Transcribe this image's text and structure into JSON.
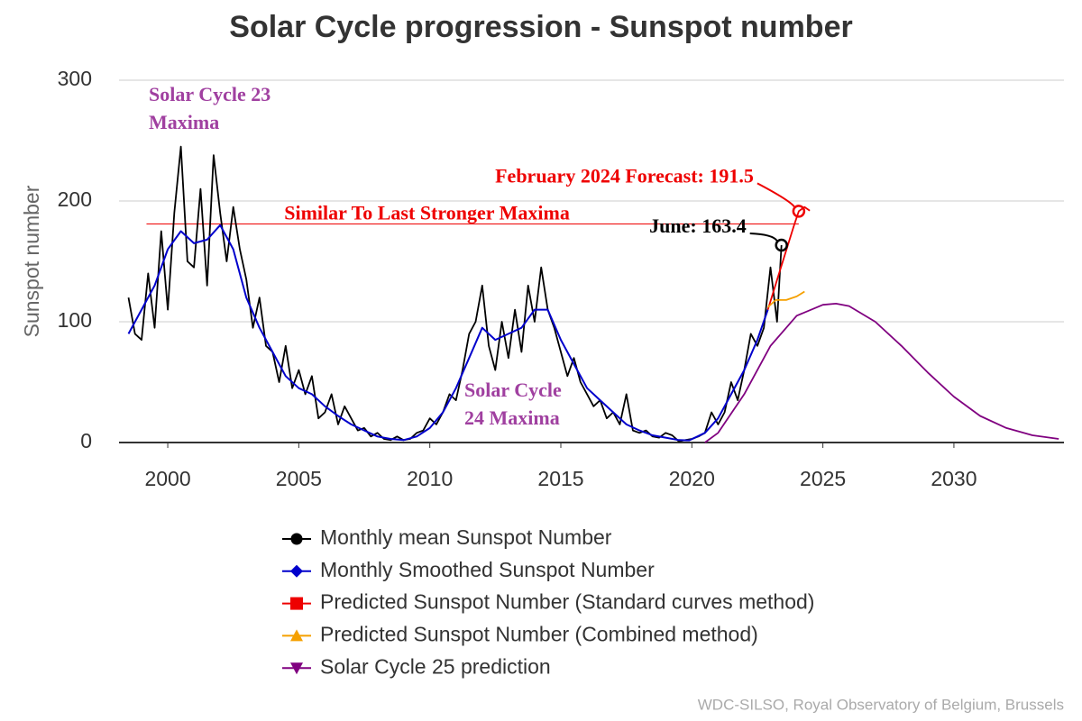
{
  "chart_data": {
    "type": "line",
    "title": "Solar Cycle progression - Sunspot number",
    "y_label": "Sunspot number",
    "source": "WDC-SILSO, Royal Observatory of Belgium, Brussels",
    "xlim": [
      1998.14,
      2034.2
    ],
    "xticks": [
      2000,
      2005,
      2010,
      2015,
      2020,
      2025,
      2030
    ],
    "ylim": [
      0,
      300
    ],
    "yticks": [
      0,
      100,
      200,
      300
    ],
    "grid": true,
    "legend": "bottom",
    "series": [
      {
        "name": "Monthly mean Sunspot Number",
        "color": "#000000",
        "marker": "circle",
        "x": [
          1998.5,
          1998.75,
          1999,
          1999.25,
          1999.5,
          1999.75,
          2000,
          2000.25,
          2000.5,
          2000.75,
          2001,
          2001.25,
          2001.5,
          2001.75,
          2002,
          2002.25,
          2002.5,
          2002.75,
          2003,
          2003.25,
          2003.5,
          2003.75,
          2004,
          2004.25,
          2004.5,
          2004.75,
          2005,
          2005.25,
          2005.5,
          2005.75,
          2006,
          2006.25,
          2006.5,
          2006.75,
          2007,
          2007.25,
          2007.5,
          2007.75,
          2008,
          2008.25,
          2008.5,
          2008.75,
          2009,
          2009.25,
          2009.5,
          2009.75,
          2010,
          2010.25,
          2010.5,
          2010.75,
          2011,
          2011.25,
          2011.5,
          2011.75,
          2012,
          2012.25,
          2012.5,
          2012.75,
          2013,
          2013.25,
          2013.5,
          2013.75,
          2014,
          2014.25,
          2014.5,
          2014.75,
          2015,
          2015.25,
          2015.5,
          2015.75,
          2016,
          2016.25,
          2016.5,
          2016.75,
          2017,
          2017.25,
          2017.5,
          2017.75,
          2018,
          2018.25,
          2018.5,
          2018.75,
          2019,
          2019.25,
          2019.5,
          2019.75,
          2020,
          2020.25,
          2020.5,
          2020.75,
          2021,
          2021.25,
          2021.5,
          2021.75,
          2022,
          2022.25,
          2022.5,
          2022.75,
          2023,
          2023.25,
          2023.42
        ],
        "values": [
          120,
          90,
          85,
          140,
          95,
          175,
          110,
          190,
          245,
          150,
          145,
          210,
          130,
          238,
          190,
          150,
          195,
          160,
          135,
          95,
          120,
          80,
          75,
          50,
          80,
          45,
          60,
          40,
          55,
          20,
          25,
          40,
          15,
          30,
          20,
          10,
          12,
          5,
          8,
          3,
          2,
          5,
          2,
          3,
          8,
          10,
          20,
          15,
          25,
          40,
          35,
          60,
          90,
          100,
          130,
          80,
          60,
          100,
          70,
          110,
          75,
          130,
          100,
          145,
          110,
          95,
          75,
          55,
          70,
          50,
          40,
          30,
          35,
          20,
          25,
          15,
          40,
          10,
          8,
          10,
          5,
          4,
          8,
          6,
          1,
          2,
          3,
          5,
          8,
          25,
          15,
          25,
          50,
          35,
          60,
          90,
          80,
          95,
          145,
          100,
          163.4
        ]
      },
      {
        "name": "Monthly Smoothed Sunspot Number",
        "color": "#0000cc",
        "marker": "diamond",
        "x": [
          1998.5,
          1999,
          1999.5,
          2000,
          2000.5,
          2001,
          2001.5,
          2002,
          2002.5,
          2003,
          2003.5,
          2004,
          2004.5,
          2005,
          2005.5,
          2006,
          2006.5,
          2007,
          2007.5,
          2008,
          2008.5,
          2009,
          2009.5,
          2010,
          2010.5,
          2011,
          2011.5,
          2012,
          2012.5,
          2013,
          2013.5,
          2014,
          2014.5,
          2015,
          2015.5,
          2016,
          2016.5,
          2017,
          2017.5,
          2018,
          2018.5,
          2019,
          2019.5,
          2019.9,
          2020.5,
          2021,
          2021.5,
          2022,
          2022.5,
          2022.9
        ],
        "values": [
          90,
          110,
          130,
          160,
          175,
          165,
          168,
          180,
          160,
          120,
          95,
          75,
          55,
          45,
          40,
          30,
          22,
          15,
          10,
          5,
          3,
          2,
          5,
          12,
          25,
          45,
          70,
          95,
          85,
          90,
          95,
          110,
          110,
          85,
          65,
          45,
          35,
          25,
          15,
          10,
          6,
          4,
          2,
          1.8,
          8,
          20,
          40,
          60,
          85,
          110
        ]
      },
      {
        "name": "Predicted Sunspot Number (Standard curves method)",
        "color": "#ee0000",
        "marker": "square",
        "x": [
          2022.9,
          2023.4,
          2023.9,
          2024.08,
          2024.3,
          2024.5
        ],
        "values": [
          110,
          145,
          180,
          191.5,
          195,
          192
        ]
      },
      {
        "name": "Predicted Sunspot Number (Combined method)",
        "color": "#f5a000",
        "marker": "triangle-up",
        "x": [
          2022.9,
          2023.2,
          2023.6,
          2024,
          2024.3
        ],
        "values": [
          112,
          118,
          118,
          121,
          125
        ]
      },
      {
        "name": "Solar Cycle 25 prediction",
        "color": "#800080",
        "marker": "triangle-down",
        "x": [
          2020.5,
          2021,
          2022,
          2023,
          2024,
          2025,
          2025.5,
          2026,
          2027,
          2028,
          2029,
          2030,
          2031,
          2032,
          2033,
          2034
        ],
        "values": [
          0,
          8,
          40,
          80,
          105,
          114,
          115,
          113,
          100,
          80,
          58,
          38,
          22,
          12,
          6,
          3
        ]
      }
    ],
    "reference_line": {
      "value": 181,
      "label": "Similar To Last Stronger Maxima",
      "color": "#ee0000"
    },
    "highlights": [
      {
        "x": 2023.42,
        "y": 163.4,
        "label": "June: 163.4",
        "color": "#000000"
      },
      {
        "x": 2024.08,
        "y": 191.5,
        "label": "February 2024 Forecast: 191.5",
        "color": "#ee0000"
      }
    ],
    "annotations": [
      {
        "lines": [
          "Solar Cycle 23",
          "Maxima"
        ],
        "color": "#a040a0"
      },
      {
        "lines": [
          "Solar Cycle",
          "24 Maxima"
        ],
        "color": "#a040a0"
      }
    ]
  }
}
